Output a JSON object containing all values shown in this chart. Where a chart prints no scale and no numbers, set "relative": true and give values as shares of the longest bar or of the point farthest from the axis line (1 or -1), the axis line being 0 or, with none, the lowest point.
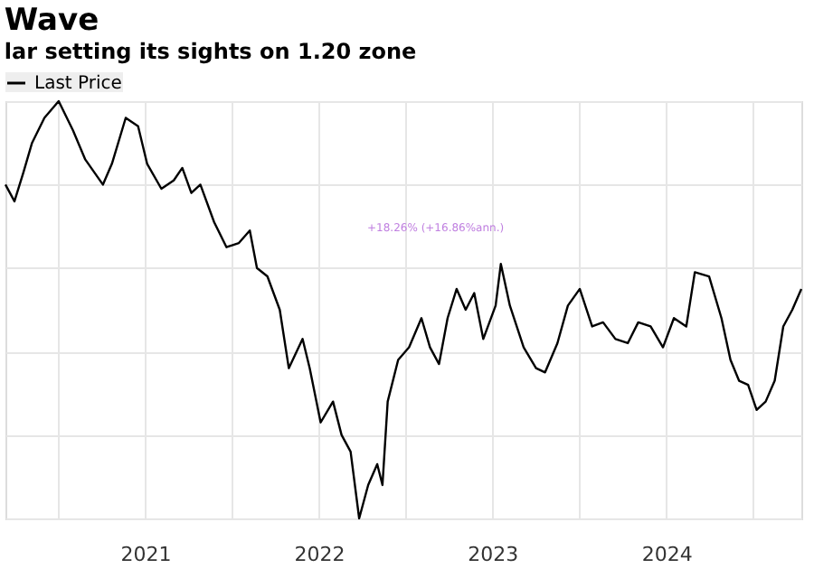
{
  "chart_data": {
    "type": "line",
    "title": "Wave",
    "subtitle": "lar setting its sights on 1.20 zone",
    "relative": true,
    "grid": true,
    "legend": "top left",
    "line_style": "solid",
    "marker": "none",
    "x": [
      "2020-09-11",
      "2020-09-30",
      "2020-10-19",
      "2020-11-06",
      "2020-12-02",
      "2021-01-01",
      "2021-01-31",
      "2021-02-26",
      "2021-04-04",
      "2021-04-23",
      "2021-05-22",
      "2021-06-17",
      "2021-07-06",
      "2021-08-05",
      "2021-08-31",
      "2021-09-18",
      "2021-10-07",
      "2021-10-26",
      "2021-11-24",
      "2021-12-20",
      "2022-01-15",
      "2022-02-07",
      "2022-02-22",
      "2022-03-16",
      "2022-04-11",
      "2022-04-30",
      "2022-05-29",
      "2022-06-13",
      "2022-07-06",
      "2022-08-01",
      "2022-08-19",
      "2022-09-07",
      "2022-09-25",
      "2022-10-14",
      "2022-11-02",
      "2022-11-13",
      "2022-11-24",
      "2022-12-16",
      "2023-01-08",
      "2023-02-03",
      "2023-02-21",
      "2023-03-12",
      "2023-03-30",
      "2023-04-18",
      "2023-05-07",
      "2023-05-25",
      "2023-06-13",
      "2023-07-09",
      "2023-07-20",
      "2023-08-08",
      "2023-09-06",
      "2023-10-02",
      "2023-10-21",
      "2023-11-16",
      "2023-12-08",
      "2024-01-02",
      "2024-01-28",
      "2024-02-20",
      "2024-03-17",
      "2024-04-12",
      "2024-05-04",
      "2024-05-30",
      "2024-06-25",
      "2024-07-18",
      "2024-08-13",
      "2024-08-31",
      "2024-09-30",
      "2024-10-26",
      "2024-11-14",
      "2024-12-02",
      "2024-12-21",
      "2025-01-08",
      "2025-01-27",
      "2025-02-15",
      "2025-03-05",
      "2025-03-24",
      "2025-04-12"
    ],
    "series": [
      {
        "name": "Last Price",
        "color": "#000000",
        "values": [
          0.8,
          0.76,
          0.83,
          0.9,
          0.96,
          1,
          0.93,
          0.86,
          0.8,
          0.85,
          0.96,
          0.94,
          0.85,
          0.79,
          0.81,
          0.84,
          0.78,
          0.8,
          0.71,
          0.65,
          0.66,
          0.69,
          0.6,
          0.58,
          0.5,
          0.36,
          0.43,
          0.36,
          0.23,
          0.28,
          0.2,
          0.16,
          0,
          0.08,
          0.13,
          0.08,
          0.28,
          0.38,
          0.41,
          0.48,
          0.41,
          0.37,
          0.48,
          0.55,
          0.5,
          0.54,
          0.43,
          0.51,
          0.61,
          0.51,
          0.41,
          0.36,
          0.35,
          0.42,
          0.51,
          0.55,
          0.46,
          0.47,
          0.43,
          0.42,
          0.47,
          0.46,
          0.41,
          0.48,
          0.46,
          0.59,
          0.58,
          0.48,
          0.38,
          0.33,
          0.32,
          0.26,
          0.28,
          0.33,
          0.46,
          0.5,
          0.55
        ]
      }
    ],
    "xlim": [
      "2020-09-11",
      "2025-04-12"
    ],
    "xticks": [
      {
        "value": "2021-01-01",
        "label": null
      },
      {
        "value": "2021-07-02",
        "label": "2021"
      },
      {
        "value": "2022-01-01",
        "label": null
      },
      {
        "value": "2022-07-02",
        "label": "2022"
      },
      {
        "value": "2023-01-01",
        "label": null
      },
      {
        "value": "2023-07-02",
        "label": "2023"
      },
      {
        "value": "2024-01-01",
        "label": null
      },
      {
        "value": "2024-07-02",
        "label": "2024"
      },
      {
        "value": "2025-01-01",
        "label": null
      }
    ],
    "annotations": [
      "+18.26% (+16.86%ann.)"
    ]
  }
}
